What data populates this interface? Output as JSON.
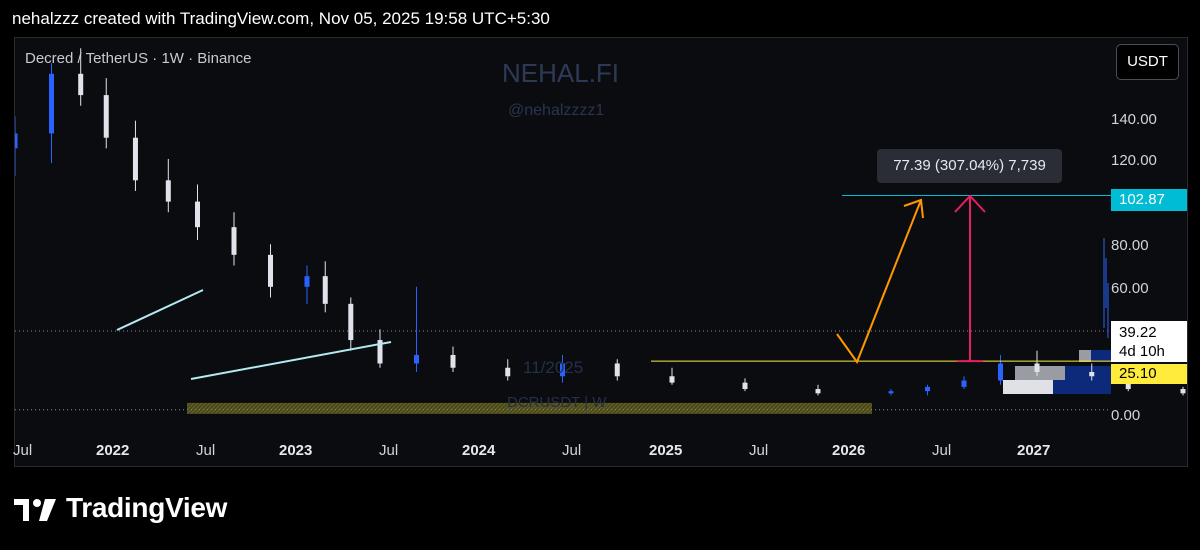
{
  "header": {
    "text": "nehalzzz created with TradingView.com, Nov 05, 2025 19:58 UTC+5:30"
  },
  "symbol_title": "Decred / TetherUS · 1W · Binance",
  "watermark": {
    "title": "NEHAL.FI",
    "handle": "@nehalzzzz1",
    "date": "11/2025",
    "symbol": "DCRUSDT | W"
  },
  "currency_button": "USDT",
  "footer": {
    "brand": "TradingView"
  },
  "colors": {
    "up": "#2962ff",
    "down": "#e0e3eb",
    "target_line": "#00bcd4",
    "support_line": "#ffeb3b",
    "zone": "#5c5a1e",
    "arrow_up": "#ff9800",
    "measure": "#e91e63",
    "trendline": "#b2ebf2"
  },
  "chart_data": {
    "type": "candlestick",
    "title": "Decred / TetherUS · 1W · Binance",
    "ylim": [
      -2,
      173
    ],
    "y_ticks": [
      "140.00",
      "120.00",
      "80.00",
      "60.00",
      "0.00"
    ],
    "x_tick_labels": [
      "Jul",
      "2022",
      "Jul",
      "2023",
      "Jul",
      "2024",
      "Jul",
      "2025",
      "Jul",
      "2026",
      "Jul",
      "2027"
    ],
    "series": [
      {
        "values": [
          [
            2021.5,
            125,
            140,
            112,
            132
          ],
          [
            2021.6,
            132,
            165,
            118,
            160
          ],
          [
            2021.68,
            160,
            172,
            145,
            150
          ],
          [
            2021.75,
            150,
            158,
            125,
            130
          ],
          [
            2021.83,
            130,
            138,
            105,
            110
          ],
          [
            2021.92,
            110,
            120,
            95,
            100
          ],
          [
            2022.0,
            100,
            108,
            82,
            88
          ],
          [
            2022.1,
            88,
            95,
            70,
            75
          ],
          [
            2022.2,
            75,
            80,
            55,
            60
          ],
          [
            2022.3,
            60,
            70,
            52,
            65
          ],
          [
            2022.35,
            65,
            72,
            48,
            52
          ],
          [
            2022.42,
            52,
            55,
            30,
            35
          ],
          [
            2022.5,
            35,
            40,
            22,
            24
          ],
          [
            2022.6,
            24,
            60,
            20,
            28
          ],
          [
            2022.7,
            28,
            32,
            20,
            22
          ],
          [
            2022.85,
            22,
            26,
            16,
            18
          ],
          [
            2023.0,
            18,
            28,
            15,
            24
          ],
          [
            2023.15,
            24,
            26,
            16,
            18
          ],
          [
            2023.3,
            18,
            22,
            14,
            15
          ],
          [
            2023.5,
            15,
            17,
            11,
            12
          ],
          [
            2023.7,
            12,
            14,
            9,
            10
          ],
          [
            2023.9,
            10,
            12,
            9,
            11
          ],
          [
            2024.0,
            11,
            14,
            9,
            13
          ],
          [
            2024.1,
            13,
            18,
            12,
            16
          ],
          [
            2024.2,
            16,
            28,
            14,
            24
          ],
          [
            2024.3,
            24,
            30,
            18,
            20
          ],
          [
            2024.45,
            20,
            24,
            16,
            18
          ],
          [
            2024.55,
            18,
            19,
            11,
            12
          ],
          [
            2024.7,
            12,
            13,
            9,
            10
          ],
          [
            2024.8,
            10,
            14,
            9,
            12
          ],
          [
            2024.9,
            12,
            26,
            11,
            22
          ],
          [
            2025.0,
            22,
            24,
            12,
            14
          ],
          [
            2025.15,
            14,
            16,
            10,
            11
          ],
          [
            2025.3,
            11,
            13,
            9,
            10
          ],
          [
            2025.45,
            10,
            14,
            9,
            13
          ],
          [
            2025.6,
            13,
            16,
            11,
            14
          ],
          [
            2025.72,
            14,
            18,
            12,
            15
          ],
          [
            2025.8,
            15,
            22,
            12,
            17
          ],
          [
            2025.84,
            17,
            70,
            16,
            39.22
          ]
        ]
      }
    ],
    "annotations": {
      "measure_label": "77.39 (307.04%) 7,739",
      "target_price": "102.87",
      "current_price": "39.22",
      "countdown": "4d 10h",
      "support_price": "25.10"
    }
  }
}
